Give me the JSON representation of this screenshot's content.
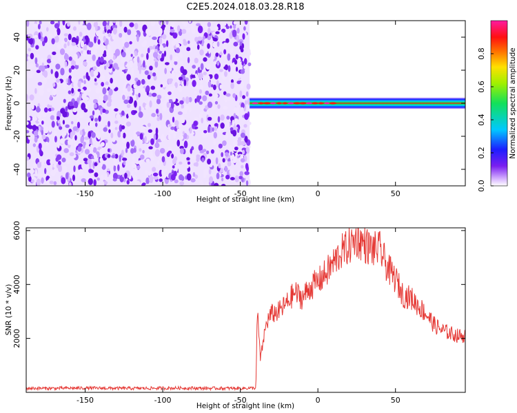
{
  "title": "C2E5.2024.018.03.28.R18",
  "colors": {
    "snr_line": "#e53935",
    "axis": "#000000",
    "noise_purple": "#7a1ff0"
  },
  "colorbar": {
    "label": "Normalized spectral amplitude",
    "ticks": [
      {
        "value": 0.0,
        "label": "0.0"
      },
      {
        "value": 0.2,
        "label": "0.2"
      },
      {
        "value": 0.4,
        "label": "0.4"
      },
      {
        "value": 0.6,
        "label": "0.6"
      },
      {
        "value": 0.8,
        "label": "0.8"
      }
    ],
    "range": [
      0,
      1
    ],
    "colormap": "rainbow (purple-blue-cyan-green-yellow-red-magenta)"
  },
  "chart_data": [
    {
      "type": "heatmap",
      "xlabel": "Height of straight line (km)",
      "ylabel": "Frequency (Hz)",
      "xlim": [
        -188,
        95
      ],
      "ylim": [
        -50,
        50
      ],
      "x_ticks": [
        {
          "value": -150,
          "label": "-150"
        },
        {
          "value": -100,
          "label": "-100"
        },
        {
          "value": -50,
          "label": "-50"
        },
        {
          "value": 0,
          "label": "0"
        },
        {
          "value": 50,
          "label": "50"
        }
      ],
      "y_ticks": [
        {
          "value": -40,
          "label": "-40"
        },
        {
          "value": -20,
          "label": "-20"
        },
        {
          "value": 0,
          "label": "0"
        },
        {
          "value": 20,
          "label": "20"
        },
        {
          "value": 40,
          "label": "40"
        }
      ],
      "noise_region_x": [
        -188,
        -44
      ],
      "signal_band": {
        "x_start": -44,
        "x_end": 95,
        "center_freq": 0,
        "half_width": 3
      }
    },
    {
      "type": "line",
      "xlabel": "Height of straight line (km)",
      "ylabel": "SNR (10 * v/v)",
      "xlim": [
        -188,
        95
      ],
      "ylim": [
        0,
        6100
      ],
      "x_ticks": [
        {
          "value": -150,
          "label": "-150"
        },
        {
          "value": -100,
          "label": "-100"
        },
        {
          "value": -50,
          "label": "-50"
        },
        {
          "value": 0,
          "label": "0"
        },
        {
          "value": 50,
          "label": "50"
        }
      ],
      "y_ticks": [
        {
          "value": 2000,
          "label": "2000"
        },
        {
          "value": 4000,
          "label": "4000"
        },
        {
          "value": 6000,
          "label": "6000"
        }
      ],
      "series": [
        {
          "x": [
            -188,
            -170,
            -150,
            -130,
            -110,
            -90,
            -70,
            -50,
            -40,
            -39,
            -37,
            -35,
            -33,
            -30,
            -25,
            -20,
            -15,
            -10,
            -5,
            0,
            5,
            10,
            15,
            20,
            25,
            30,
            35,
            40,
            45,
            50,
            55,
            60,
            65,
            70,
            75,
            80,
            85,
            90,
            95
          ],
          "values": [
            150,
            150,
            160,
            150,
            150,
            160,
            150,
            150,
            160,
            3000,
            1200,
            2000,
            2600,
            2900,
            3000,
            3300,
            3700,
            3500,
            3900,
            4100,
            4400,
            4800,
            5200,
            5400,
            5700,
            5500,
            5300,
            5300,
            4600,
            4200,
            3600,
            3500,
            3200,
            2900,
            2500,
            2300,
            2200,
            2100,
            2100
          ]
        }
      ]
    }
  ]
}
